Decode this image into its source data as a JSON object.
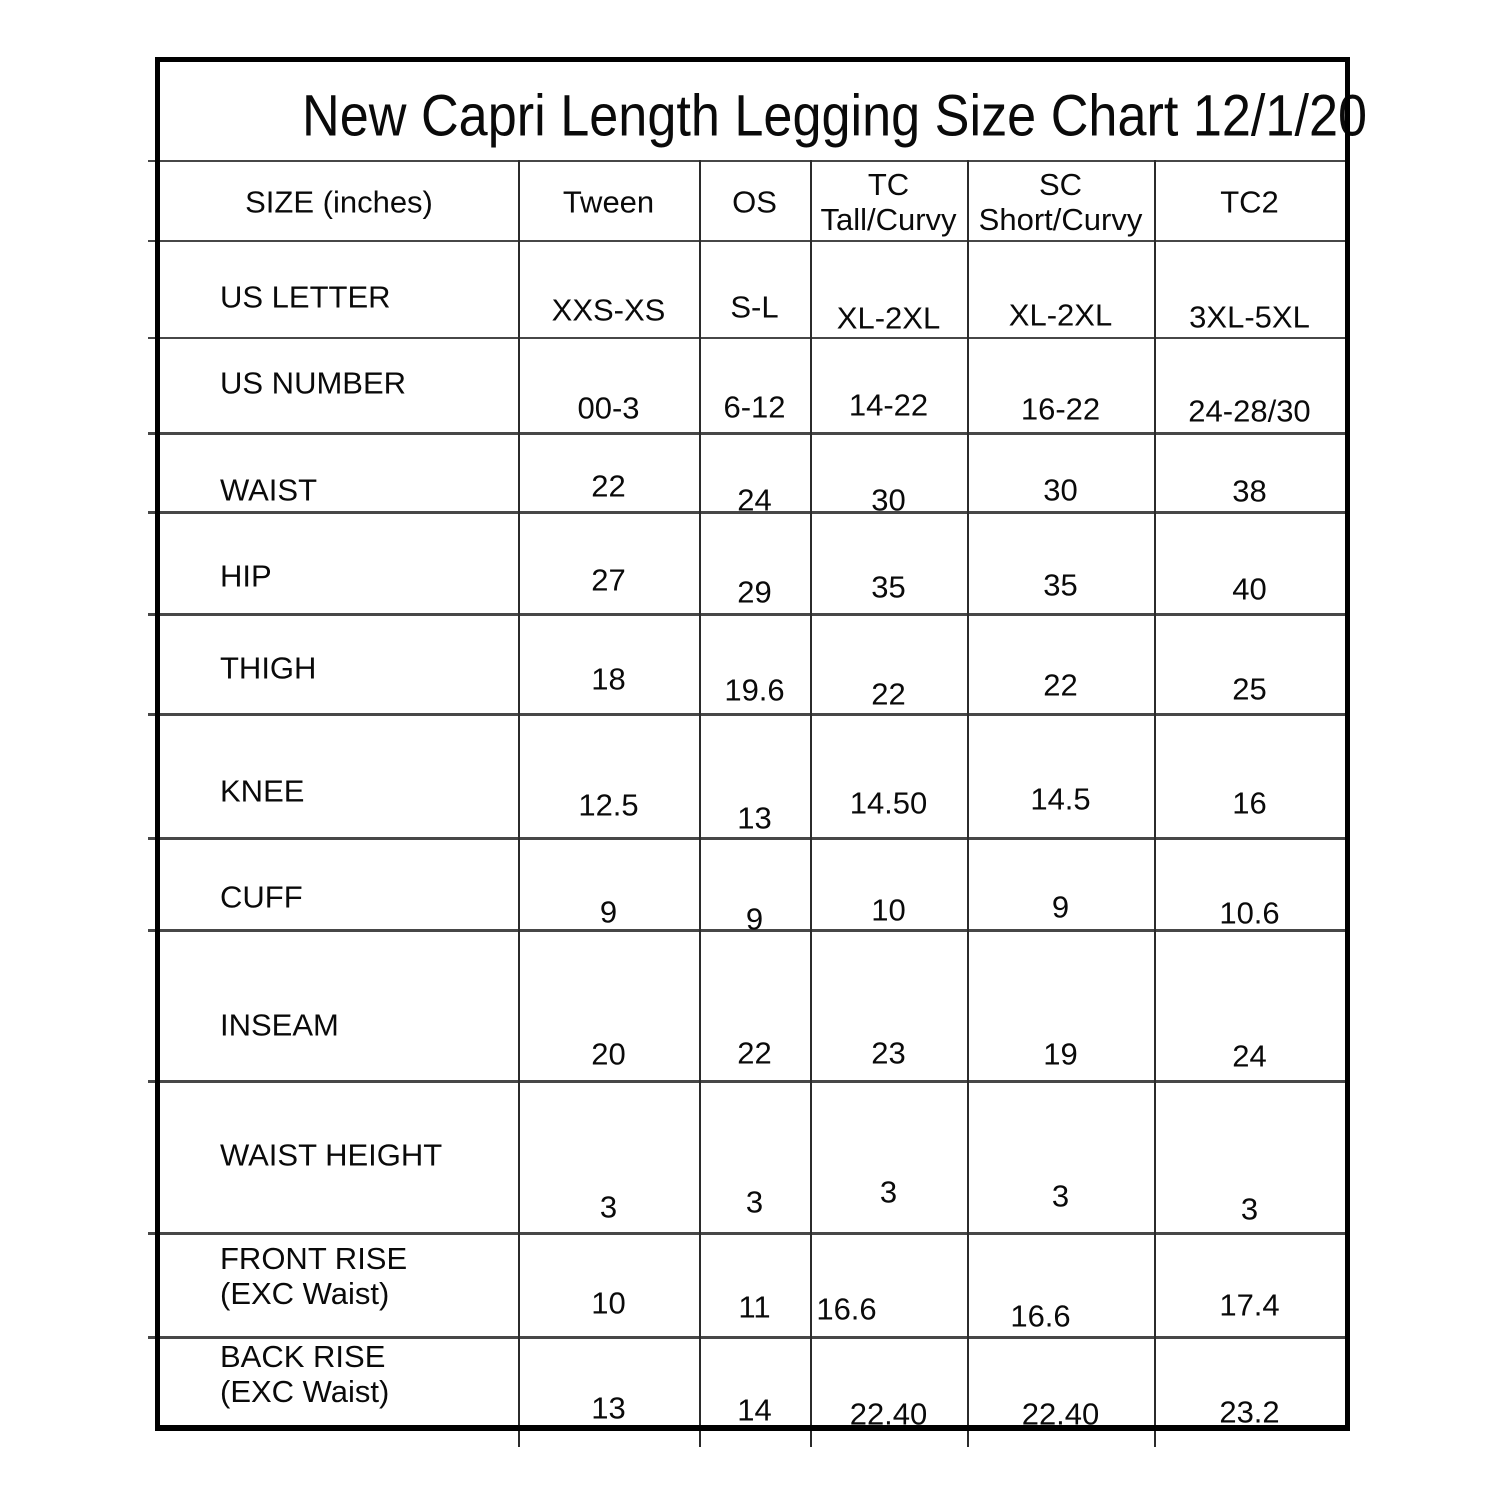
{
  "page_title": "New Capri Length Legging Size Chart 12/1/20",
  "chart_data": {
    "type": "table",
    "title": "New Capri Length Legging Size Chart 12/1/20",
    "columns": [
      "SIZE (inches)",
      "Tween",
      "OS",
      "TC Tall/Curvy",
      "SC Short/Curvy",
      "TC2"
    ],
    "columns_display": [
      "SIZE (inches)",
      "Tween",
      "OS",
      "TC\nTall/Curvy",
      "SC\nShort/Curvy",
      "TC2"
    ],
    "rows": [
      {
        "label": "US LETTER",
        "values": [
          "XXS-XS",
          "S-L",
          "XL-2XL",
          "XL-2XL",
          "3XL-5XL"
        ]
      },
      {
        "label": "US NUMBER",
        "values": [
          "00-3",
          "6-12",
          "14-22",
          "16-22",
          "24-28/30"
        ]
      },
      {
        "label": "WAIST",
        "values": [
          "22",
          "24",
          "30",
          "30",
          "38"
        ]
      },
      {
        "label": "HIP",
        "values": [
          "27",
          "29",
          "35",
          "35",
          "40"
        ]
      },
      {
        "label": "THIGH",
        "values": [
          "18",
          "19.6",
          "22",
          "22",
          "25"
        ]
      },
      {
        "label": "KNEE",
        "values": [
          "12.5",
          "13",
          "14.50",
          "14.5",
          "16"
        ]
      },
      {
        "label": "CUFF",
        "values": [
          "9",
          "9",
          "10",
          "9",
          "10.6"
        ]
      },
      {
        "label": "INSEAM",
        "values": [
          "20",
          "22",
          "23",
          "19",
          "24"
        ]
      },
      {
        "label": "WAIST HEIGHT",
        "values": [
          "3",
          "3",
          "3",
          "3",
          "3"
        ]
      },
      {
        "label": "FRONT RISE\n(EXC Waist)",
        "values": [
          "10",
          "11",
          "16.6",
          "16.6",
          "17.4"
        ]
      },
      {
        "label": "BACK RISE\n(EXC Waist)",
        "values": [
          "13",
          "14",
          "22.40",
          "22.40",
          "23.2"
        ]
      }
    ],
    "units": "inches",
    "text_color": "#0a0a0a",
    "line_color": "#474747",
    "border_color": "#000000",
    "background_color": "#ffffff"
  }
}
